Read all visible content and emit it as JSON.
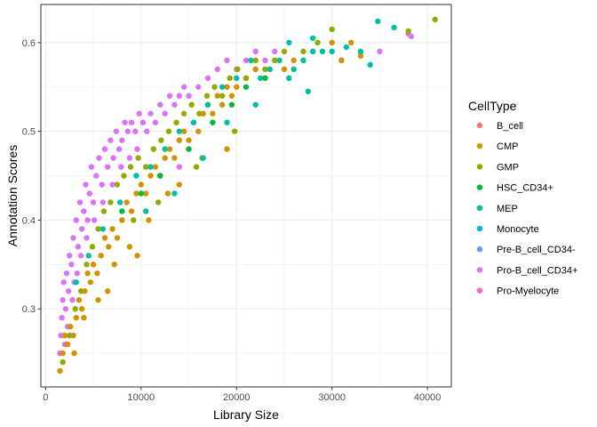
{
  "chart_data": {
    "type": "scatter",
    "xlabel": "Library Size",
    "ylabel": "Annotation Scores",
    "xlim": [
      -500,
      42500
    ],
    "ylim": [
      0.212,
      0.643
    ],
    "x_ticks": [
      0,
      10000,
      20000,
      30000,
      40000
    ],
    "x_tick_labels": [
      "0",
      "10000",
      "20000",
      "30000",
      "40000"
    ],
    "y_ticks": [
      0.3,
      0.4,
      0.5,
      0.6
    ],
    "y_tick_labels": [
      "0.3",
      "0.4",
      "0.5",
      "0.6"
    ],
    "grid": true,
    "legend": {
      "title": "CellType",
      "position": "right",
      "entries": [
        {
          "name": "B_cell",
          "color": "#F8766D"
        },
        {
          "name": "CMP",
          "color": "#D39200"
        },
        {
          "name": "GMP",
          "color": "#93AA00"
        },
        {
          "name": "HSC_CD34+",
          "color": "#00BA38"
        },
        {
          "name": "MEP",
          "color": "#00C19F"
        },
        {
          "name": "Monocyte",
          "color": "#00B9E3"
        },
        {
          "name": "Pre-B_cell_CD34-",
          "color": "#619CFF"
        },
        {
          "name": "Pro-B_cell_CD34+",
          "color": "#DB72FB"
        },
        {
          "name": "Pro-Myelocyte",
          "color": "#FF61C3"
        }
      ]
    },
    "series": [
      {
        "name": "Pro-B_cell_CD34+",
        "color": "#DB72FB",
        "points": [
          [
            1500,
            0.25
          ],
          [
            1600,
            0.27
          ],
          [
            1700,
            0.29
          ],
          [
            1800,
            0.31
          ],
          [
            1900,
            0.33
          ],
          [
            2000,
            0.26
          ],
          [
            2100,
            0.3
          ],
          [
            2200,
            0.34
          ],
          [
            2400,
            0.32
          ],
          [
            2500,
            0.36
          ],
          [
            2700,
            0.35
          ],
          [
            2900,
            0.38
          ],
          [
            3000,
            0.33
          ],
          [
            3200,
            0.4
          ],
          [
            3400,
            0.37
          ],
          [
            3600,
            0.42
          ],
          [
            3800,
            0.39
          ],
          [
            4000,
            0.41
          ],
          [
            4200,
            0.44
          ],
          [
            4400,
            0.4
          ],
          [
            4600,
            0.43
          ],
          [
            4800,
            0.46
          ],
          [
            5000,
            0.42
          ],
          [
            5300,
            0.45
          ],
          [
            5600,
            0.47
          ],
          [
            5900,
            0.44
          ],
          [
            6200,
            0.48
          ],
          [
            6500,
            0.46
          ],
          [
            6800,
            0.49
          ],
          [
            7100,
            0.47
          ],
          [
            7400,
            0.5
          ],
          [
            7700,
            0.48
          ],
          [
            8000,
            0.49
          ],
          [
            8300,
            0.51
          ],
          [
            8600,
            0.5
          ],
          [
            9000,
            0.51
          ],
          [
            9400,
            0.5
          ],
          [
            9800,
            0.52
          ],
          [
            10200,
            0.51
          ],
          [
            10600,
            0.5
          ],
          [
            11000,
            0.52
          ],
          [
            11500,
            0.51
          ],
          [
            12000,
            0.53
          ],
          [
            12500,
            0.52
          ],
          [
            13000,
            0.54
          ],
          [
            13500,
            0.53
          ],
          [
            14000,
            0.54
          ],
          [
            14500,
            0.55
          ],
          [
            15000,
            0.54
          ],
          [
            16000,
            0.55
          ],
          [
            17000,
            0.56
          ],
          [
            18000,
            0.57
          ],
          [
            19000,
            0.58
          ],
          [
            20000,
            0.57
          ],
          [
            21000,
            0.58
          ],
          [
            22000,
            0.59
          ],
          [
            23000,
            0.58
          ],
          [
            24000,
            0.59
          ],
          [
            14000,
            0.46
          ],
          [
            2300,
            0.28
          ],
          [
            2800,
            0.31
          ],
          [
            3300,
            0.34
          ],
          [
            3700,
            0.36
          ],
          [
            4300,
            0.38
          ],
          [
            5100,
            0.4
          ],
          [
            6000,
            0.42
          ],
          [
            7000,
            0.44
          ],
          [
            7900,
            0.46
          ],
          [
            8800,
            0.47
          ],
          [
            9600,
            0.48
          ],
          [
            35000,
            0.59
          ],
          [
            38000,
            0.61
          ],
          [
            38300,
            0.607
          ],
          [
            31000,
            0.58
          ]
        ]
      },
      {
        "name": "CMP",
        "color": "#D39200",
        "points": [
          [
            1500,
            0.23
          ],
          [
            1800,
            0.25
          ],
          [
            2000,
            0.27
          ],
          [
            2300,
            0.26
          ],
          [
            2600,
            0.28
          ],
          [
            2900,
            0.27
          ],
          [
            3200,
            0.29
          ],
          [
            3500,
            0.31
          ],
          [
            3800,
            0.3
          ],
          [
            4100,
            0.32
          ],
          [
            4400,
            0.34
          ],
          [
            4700,
            0.33
          ],
          [
            5000,
            0.35
          ],
          [
            5400,
            0.34
          ],
          [
            5800,
            0.36
          ],
          [
            6200,
            0.38
          ],
          [
            6600,
            0.37
          ],
          [
            7000,
            0.39
          ],
          [
            7500,
            0.38
          ],
          [
            8000,
            0.4
          ],
          [
            8500,
            0.42
          ],
          [
            9000,
            0.41
          ],
          [
            9500,
            0.43
          ],
          [
            10000,
            0.44
          ],
          [
            10500,
            0.43
          ],
          [
            11000,
            0.45
          ],
          [
            11500,
            0.46
          ],
          [
            12000,
            0.45
          ],
          [
            12500,
            0.47
          ],
          [
            13000,
            0.48
          ],
          [
            13500,
            0.47
          ],
          [
            14000,
            0.49
          ],
          [
            14500,
            0.5
          ],
          [
            15000,
            0.49
          ],
          [
            15500,
            0.51
          ],
          [
            16000,
            0.5
          ],
          [
            16500,
            0.52
          ],
          [
            17000,
            0.53
          ],
          [
            17500,
            0.52
          ],
          [
            18000,
            0.54
          ],
          [
            18500,
            0.53
          ],
          [
            19000,
            0.55
          ],
          [
            19500,
            0.54
          ],
          [
            20000,
            0.55
          ],
          [
            21000,
            0.56
          ],
          [
            22000,
            0.57
          ],
          [
            23000,
            0.56
          ],
          [
            24000,
            0.58
          ],
          [
            25000,
            0.57
          ],
          [
            26000,
            0.58
          ],
          [
            28000,
            0.59
          ],
          [
            30000,
            0.6
          ],
          [
            31000,
            0.58
          ],
          [
            32000,
            0.6
          ],
          [
            33000,
            0.585
          ],
          [
            6500,
            0.32
          ],
          [
            7200,
            0.35
          ],
          [
            8800,
            0.37
          ],
          [
            10800,
            0.4
          ],
          [
            12800,
            0.43
          ],
          [
            3000,
            0.25
          ],
          [
            4000,
            0.29
          ],
          [
            5500,
            0.31
          ],
          [
            9600,
            0.36
          ],
          [
            14000,
            0.44
          ],
          [
            16400,
            0.47
          ],
          [
            19000,
            0.48
          ]
        ]
      },
      {
        "name": "GMP",
        "color": "#93AA00",
        "points": [
          [
            1800,
            0.24
          ],
          [
            2500,
            0.27
          ],
          [
            3100,
            0.3
          ],
          [
            3700,
            0.32
          ],
          [
            4300,
            0.35
          ],
          [
            4900,
            0.37
          ],
          [
            5500,
            0.39
          ],
          [
            6100,
            0.41
          ],
          [
            6800,
            0.42
          ],
          [
            7500,
            0.44
          ],
          [
            8200,
            0.45
          ],
          [
            8900,
            0.46
          ],
          [
            9700,
            0.47
          ],
          [
            10500,
            0.46
          ],
          [
            11300,
            0.48
          ],
          [
            12100,
            0.49
          ],
          [
            12900,
            0.5
          ],
          [
            13700,
            0.51
          ],
          [
            14500,
            0.52
          ],
          [
            15300,
            0.53
          ],
          [
            16100,
            0.52
          ],
          [
            16900,
            0.54
          ],
          [
            17700,
            0.55
          ],
          [
            18500,
            0.54
          ],
          [
            19300,
            0.56
          ],
          [
            20100,
            0.57
          ],
          [
            21000,
            0.56
          ],
          [
            22000,
            0.58
          ],
          [
            23000,
            0.57
          ],
          [
            24000,
            0.58
          ],
          [
            25000,
            0.59
          ],
          [
            27000,
            0.59
          ],
          [
            30000,
            0.615
          ],
          [
            38000,
            0.613
          ],
          [
            40800,
            0.626
          ],
          [
            28500,
            0.6
          ],
          [
            9200,
            0.4
          ],
          [
            11800,
            0.42
          ],
          [
            15800,
            0.46
          ],
          [
            19800,
            0.5
          ]
        ]
      },
      {
        "name": "MEP",
        "color": "#00C19F",
        "points": [
          [
            3200,
            0.33
          ],
          [
            4500,
            0.36
          ],
          [
            6000,
            0.39
          ],
          [
            7800,
            0.42
          ],
          [
            9500,
            0.45
          ],
          [
            11000,
            0.46
          ],
          [
            12500,
            0.48
          ],
          [
            14000,
            0.5
          ],
          [
            15500,
            0.51
          ],
          [
            17000,
            0.53
          ],
          [
            18500,
            0.55
          ],
          [
            20000,
            0.56
          ],
          [
            21500,
            0.58
          ],
          [
            22500,
            0.56
          ],
          [
            23500,
            0.57
          ],
          [
            24500,
            0.58
          ],
          [
            25500,
            0.56
          ],
          [
            26000,
            0.57
          ],
          [
            27000,
            0.58
          ],
          [
            27500,
            0.545
          ],
          [
            28000,
            0.59
          ],
          [
            29000,
            0.59
          ],
          [
            30000,
            0.59
          ],
          [
            31500,
            0.595
          ],
          [
            33000,
            0.59
          ],
          [
            34000,
            0.575
          ],
          [
            34800,
            0.624
          ],
          [
            36500,
            0.617
          ],
          [
            25500,
            0.6
          ],
          [
            28000,
            0.605
          ],
          [
            13500,
            0.43
          ],
          [
            16500,
            0.47
          ],
          [
            19000,
            0.51
          ],
          [
            22000,
            0.53
          ],
          [
            10500,
            0.41
          ]
        ]
      },
      {
        "name": "HSC_CD34+",
        "color": "#00BA38",
        "points": [
          [
            8000,
            0.41
          ],
          [
            10000,
            0.43
          ],
          [
            12000,
            0.45
          ],
          [
            15000,
            0.48
          ],
          [
            17500,
            0.51
          ],
          [
            19500,
            0.53
          ],
          [
            21000,
            0.55
          ],
          [
            23000,
            0.56
          ]
        ]
      }
    ]
  }
}
